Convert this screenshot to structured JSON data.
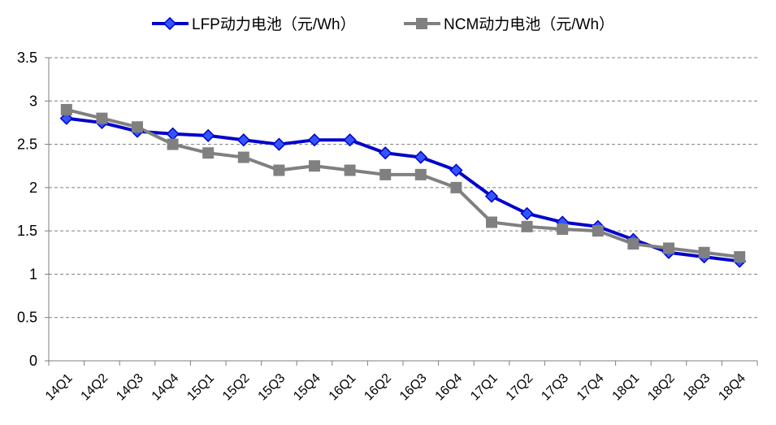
{
  "chart_data": {
    "type": "line",
    "title": "",
    "xlabel": "",
    "ylabel": "",
    "ylim": [
      0,
      3.5
    ],
    "yticks": [
      "0",
      "0.5",
      "1",
      "1.5",
      "2",
      "2.5",
      "3",
      "3.5"
    ],
    "ytick_values": [
      0,
      0.5,
      1,
      1.5,
      2,
      2.5,
      3,
      3.5
    ],
    "grid": "horizontal dashed",
    "legend_position": "top",
    "categories": [
      "14Q1",
      "14Q2",
      "14Q3",
      "14Q4",
      "15Q1",
      "15Q2",
      "15Q3",
      "15Q4",
      "16Q1",
      "16Q2",
      "16Q3",
      "16Q4",
      "17Q1",
      "17Q2",
      "17Q3",
      "17Q4",
      "18Q1",
      "18Q2",
      "18Q3",
      "18Q4"
    ],
    "series": [
      {
        "name": "LFP动力电池（元/Wh）",
        "color": "#0000cc",
        "marker_color": "#3355ff",
        "marker": "diamond",
        "values": [
          2.8,
          2.75,
          2.65,
          2.62,
          2.6,
          2.55,
          2.5,
          2.55,
          2.55,
          2.4,
          2.35,
          2.2,
          1.9,
          1.7,
          1.6,
          1.55,
          1.4,
          1.25,
          1.2,
          1.15
        ]
      },
      {
        "name": "NCM动力电池（元/Wh）",
        "color": "#808080",
        "marker_color": "#808080",
        "marker": "square",
        "values": [
          2.9,
          2.8,
          2.7,
          2.5,
          2.4,
          2.35,
          2.2,
          2.25,
          2.2,
          2.15,
          2.15,
          2.0,
          1.6,
          1.55,
          1.52,
          1.5,
          1.35,
          1.3,
          1.25,
          1.2
        ]
      }
    ]
  }
}
